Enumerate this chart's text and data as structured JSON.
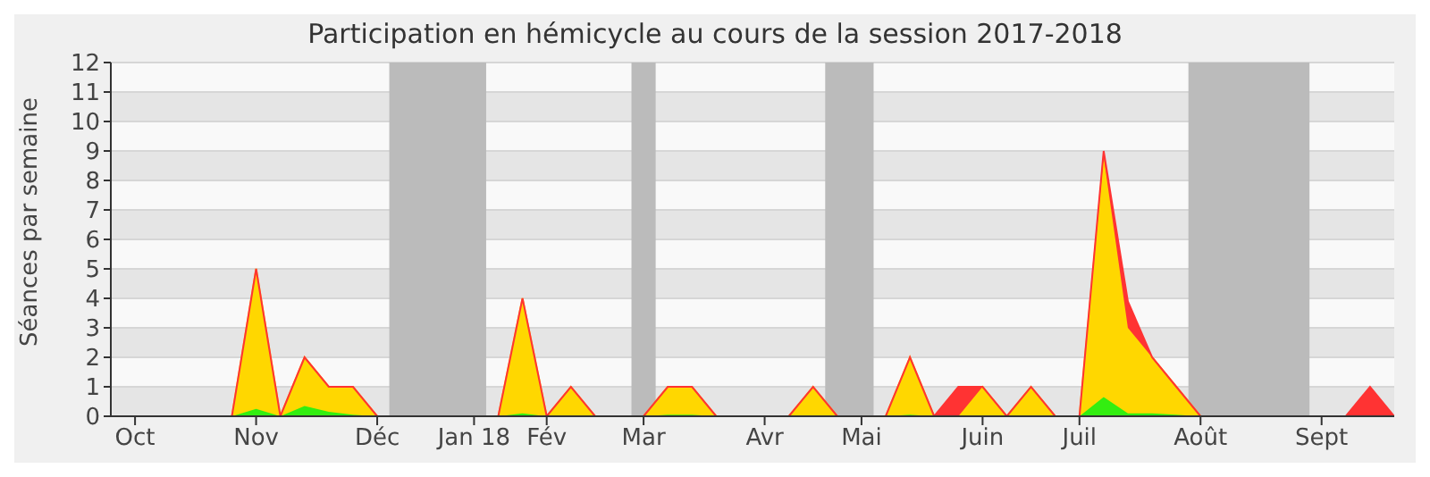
{
  "chart_data": {
    "type": "area",
    "title": "Participation en hémicycle au cours de la session 2017-2018",
    "ylabel": "Séances par semaine",
    "stacked": true,
    "grid": "y",
    "x": [
      "2017-09-28",
      "2017-10-05",
      "2017-10-12",
      "2017-10-19",
      "2017-10-26",
      "2017-11-02",
      "2017-11-09",
      "2017-11-16",
      "2017-11-23",
      "2017-11-30",
      "2017-12-07",
      "2017-12-14",
      "2017-12-21",
      "2017-12-28",
      "2018-01-04",
      "2018-01-11",
      "2018-01-18",
      "2018-01-25",
      "2018-02-01",
      "2018-02-08",
      "2018-02-15",
      "2018-02-22",
      "2018-03-01",
      "2018-03-08",
      "2018-03-15",
      "2018-03-22",
      "2018-03-29",
      "2018-04-05",
      "2018-04-12",
      "2018-04-19",
      "2018-04-26",
      "2018-05-03",
      "2018-05-10",
      "2018-05-17",
      "2018-05-24",
      "2018-05-31",
      "2018-06-07",
      "2018-06-14",
      "2018-06-21",
      "2018-06-28",
      "2018-07-05",
      "2018-07-12",
      "2018-07-19",
      "2018-07-26",
      "2018-08-02",
      "2018-08-09",
      "2018-08-16",
      "2018-08-23",
      "2018-08-30",
      "2018-09-06",
      "2018-09-13",
      "2018-09-20",
      "2018-09-27",
      "2018-10-04"
    ],
    "series": [
      {
        "color": "#33ee11",
        "values": [
          0,
          0,
          0,
          0,
          0,
          0,
          0.25,
          0,
          0.35,
          0.15,
          0.05,
          0,
          0,
          0,
          0,
          0,
          0,
          0.1,
          0,
          0,
          0,
          0,
          0,
          0.05,
          0.05,
          0,
          0,
          0,
          0,
          0,
          0,
          0,
          0,
          0.05,
          0,
          0,
          0,
          0,
          0,
          0,
          0,
          0.65,
          0.1,
          0.1,
          0.05,
          0,
          0,
          0,
          0,
          0,
          0,
          0,
          0,
          0
        ]
      },
      {
        "color": "#ffd700",
        "values": [
          0,
          0,
          0,
          0,
          0,
          0,
          4.75,
          0,
          1.65,
          0.85,
          0.95,
          0,
          0,
          0,
          0,
          0,
          0,
          3.9,
          0,
          1,
          0,
          0,
          0,
          0.95,
          0.95,
          0,
          0,
          0,
          0,
          1,
          0,
          0,
          0,
          1.95,
          0,
          0,
          1,
          0,
          1,
          0,
          0,
          8.15,
          2.9,
          1.9,
          0.95,
          0,
          0,
          0,
          0,
          0,
          0,
          0,
          0,
          0
        ]
      },
      {
        "color": "#ff3333",
        "values": [
          0,
          0,
          0,
          0,
          0,
          0,
          0,
          0,
          0,
          0,
          0,
          0,
          0,
          0,
          0,
          0,
          0,
          0,
          0,
          0,
          0,
          0,
          0,
          0,
          0,
          0,
          0,
          0,
          0,
          0,
          0,
          0,
          0,
          0,
          0,
          1,
          0,
          0,
          0,
          0,
          0,
          0.2,
          0.9,
          0,
          0,
          0,
          0,
          0,
          0,
          0,
          0,
          0,
          1,
          0
        ]
      }
    ],
    "xlim": [
      "2017-09-28",
      "2018-10-04"
    ],
    "xticks": [
      {
        "value": "2017-10-05",
        "label": "Oct"
      },
      {
        "value": "2017-11-09",
        "label": "Nov"
      },
      {
        "value": "2017-12-14",
        "label": "Déc"
      },
      {
        "value": "2018-01-11",
        "label": "Jan 18"
      },
      {
        "value": "2018-02-01",
        "label": "Fév"
      },
      {
        "value": "2018-03-01",
        "label": "Mar"
      },
      {
        "value": "2018-04-05",
        "label": "Avr"
      },
      {
        "value": "2018-05-03",
        "label": "Mai"
      },
      {
        "value": "2018-06-07",
        "label": "Juin"
      },
      {
        "value": "2018-07-05",
        "label": "Juil"
      },
      {
        "value": "2018-08-09",
        "label": "Août"
      },
      {
        "value": "2018-09-13",
        "label": "Sept"
      }
    ],
    "ylim": [
      0,
      12
    ],
    "yticks": [
      0,
      1,
      2,
      3,
      4,
      5,
      6,
      7,
      8,
      9,
      10,
      11,
      12
    ],
    "bands": [
      {
        "axis": "x",
        "from": "2017-12-17T12:00",
        "to": "2018-01-14T12:00",
        "color": "#bbbbbb"
      },
      {
        "axis": "x",
        "from": "2018-02-25T12:00",
        "to": "2018-03-04T12:00",
        "color": "#bbbbbb"
      },
      {
        "axis": "x",
        "from": "2018-04-22T12:00",
        "to": "2018-05-06T12:00",
        "color": "#bbbbbb"
      },
      {
        "axis": "x",
        "from": "2018-08-05T12:00",
        "to": "2018-09-09T12:00",
        "color": "#bbbbbb"
      }
    ]
  }
}
